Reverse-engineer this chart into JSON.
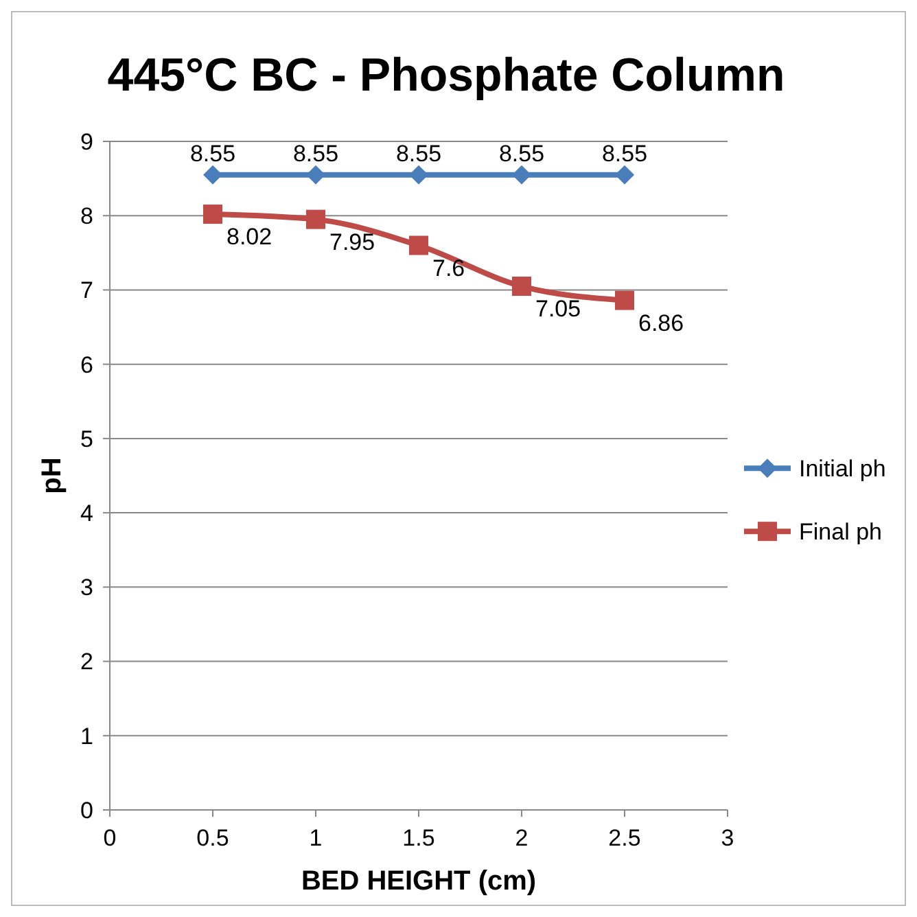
{
  "chart_data": {
    "type": "line",
    "title": "445°C BC - Phosphate Column",
    "xlabel": "BED HEIGHT (cm)",
    "ylabel": "pH",
    "x": [
      0.5,
      1,
      1.5,
      2,
      2.5
    ],
    "xlim": [
      0,
      3
    ],
    "xticks": [
      0,
      0.5,
      1,
      1.5,
      2,
      2.5,
      3
    ],
    "ylim": [
      0,
      9
    ],
    "yticks": [
      0,
      1,
      2,
      3,
      4,
      5,
      6,
      7,
      8,
      9
    ],
    "grid": "y",
    "legend": "right",
    "data_labels": true,
    "series": [
      {
        "name": "Initial ph",
        "color": "#4a7ebb",
        "marker": "diamond",
        "values": [
          8.55,
          8.55,
          8.55,
          8.55,
          8.55
        ]
      },
      {
        "name": "Final ph",
        "color": "#be4b48",
        "marker": "square",
        "values": [
          8.02,
          7.95,
          7.6,
          7.05,
          6.86
        ]
      }
    ]
  }
}
